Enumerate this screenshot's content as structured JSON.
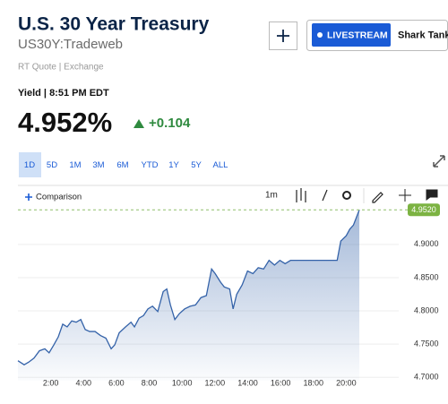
{
  "header": {
    "title": "U.S. 30 Year Treasury",
    "symbol": "US30Y:Tradeweb",
    "quote_type": "RT Quote | Exchange",
    "live_button": "LIVESTREAM",
    "show": "Shark Tank"
  },
  "quote": {
    "time": "Yield | 8:51 PM EDT",
    "last": "4.952%",
    "change": "+0.104"
  },
  "tabs": {
    "items": [
      "1D",
      "5D",
      "1M",
      "3M",
      "6M",
      "YTD",
      "1Y",
      "5Y",
      "ALL"
    ],
    "selected": 0
  },
  "toolbar": {
    "comparison": "Comparison",
    "interval": "1m"
  },
  "chart_data": {
    "type": "area",
    "color": "#3563a9",
    "x": [
      0,
      0.38,
      0.66,
      0.98,
      1.31,
      1.64,
      1.9,
      2.19,
      2.46,
      2.73,
      3.0,
      3.28,
      3.55,
      3.83,
      4.1,
      4.37,
      4.7,
      5.03,
      5.36,
      5.68,
      5.9,
      6.17,
      6.56,
      6.89,
      7.1,
      7.38,
      7.65,
      7.92,
      8.2,
      8.52,
      8.85,
      9.07,
      9.29,
      9.56,
      9.84,
      10.16,
      10.49,
      10.82,
      11.15,
      11.48,
      11.8,
      12.02,
      12.35,
      12.57,
      12.9,
      13.11,
      13.33,
      13.66,
      13.99,
      14.32,
      14.64,
      14.97,
      15.3,
      15.63,
      15.96,
      16.28,
      16.61,
      16.94,
      19.45,
      19.67,
      20.0,
      20.22,
      20.44,
      20.8
    ],
    "values": [
      4.725,
      4.719,
      4.723,
      4.729,
      4.74,
      4.743,
      4.737,
      4.749,
      4.761,
      4.78,
      4.776,
      4.785,
      4.783,
      4.787,
      4.772,
      4.769,
      4.769,
      4.763,
      4.759,
      4.743,
      4.749,
      4.767,
      4.776,
      4.783,
      4.776,
      4.789,
      4.793,
      4.803,
      4.807,
      4.799,
      4.829,
      4.833,
      4.809,
      4.787,
      4.796,
      4.803,
      4.807,
      4.809,
      4.82,
      4.823,
      4.863,
      4.856,
      4.843,
      4.836,
      4.833,
      4.803,
      4.825,
      4.839,
      4.86,
      4.856,
      4.865,
      4.863,
      4.876,
      4.869,
      4.876,
      4.871,
      4.876,
      4.876,
      4.876,
      4.905,
      4.913,
      4.923,
      4.929,
      4.952
    ],
    "current": {
      "value": 4.952,
      "label": "4.9520"
    },
    "xlim": [
      0,
      23.2
    ],
    "xticks": [
      {
        "value": 2,
        "label": "2:00"
      },
      {
        "value": 4,
        "label": "4:00"
      },
      {
        "value": 6,
        "label": "6:00"
      },
      {
        "value": 8,
        "label": "8:00"
      },
      {
        "value": 10,
        "label": "10:00"
      },
      {
        "value": 12,
        "label": "12:00"
      },
      {
        "value": 14,
        "label": "14:00"
      },
      {
        "value": 16,
        "label": "16:00"
      },
      {
        "value": 18,
        "label": "18:00"
      },
      {
        "value": 20,
        "label": "20:00"
      }
    ],
    "ylim": [
      4.695,
      4.955
    ],
    "yticks": [
      {
        "value": 4.7,
        "label": "4.7000"
      },
      {
        "value": 4.75,
        "label": "4.7500"
      },
      {
        "value": 4.8,
        "label": "4.8000"
      },
      {
        "value": 4.85,
        "label": "4.8500"
      },
      {
        "value": 4.9,
        "label": "4.9000"
      }
    ],
    "grid": true
  }
}
